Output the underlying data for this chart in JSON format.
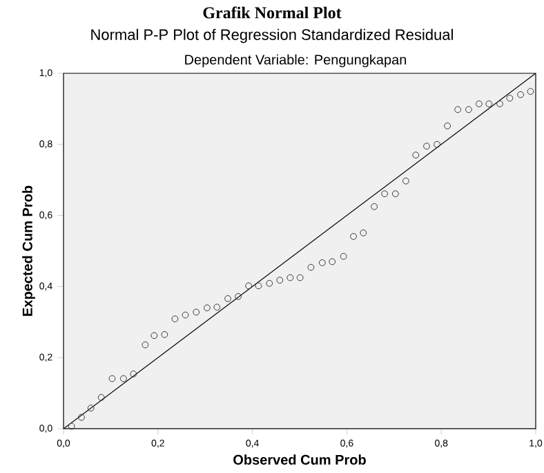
{
  "chart_data": {
    "type": "scatter",
    "title": "Grafik Normal Plot",
    "subtitle": "Normal P-P Plot of Regression Standardized Residual",
    "annotations": [
      "Dependent Variable: Pengungkapan"
    ],
    "xlabel": "Observed Cum Prob",
    "ylabel": "Expected Cum Prob",
    "xlim": [
      0,
      1
    ],
    "ylim": [
      0,
      1
    ],
    "xticks": [
      {
        "value": 0,
        "label": "0,0"
      },
      {
        "value": 0.2,
        "label": "0,2"
      },
      {
        "value": 0.4,
        "label": "0,4"
      },
      {
        "value": 0.6,
        "label": "0,6"
      },
      {
        "value": 0.8,
        "label": "0,8"
      },
      {
        "value": 1,
        "label": "1,0"
      }
    ],
    "yticks": [
      {
        "value": 0,
        "label": "0,0"
      },
      {
        "value": 0.2,
        "label": "0,2"
      },
      {
        "value": 0.4,
        "label": "0,4"
      },
      {
        "value": 0.6,
        "label": "0,6"
      },
      {
        "value": 0.8,
        "label": "0,8"
      },
      {
        "value": 1,
        "label": "1,0"
      }
    ],
    "grid": false,
    "series": [
      {
        "marker": "circle",
        "color": "#3a3a3a",
        "x": [
          0.017,
          0.038,
          0.058,
          0.08,
          0.103,
          0.127,
          0.148,
          0.173,
          0.192,
          0.214,
          0.236,
          0.258,
          0.281,
          0.304,
          0.325,
          0.348,
          0.37,
          0.392,
          0.413,
          0.436,
          0.458,
          0.48,
          0.501,
          0.524,
          0.548,
          0.569,
          0.593,
          0.614,
          0.635,
          0.658,
          0.68,
          0.703,
          0.725,
          0.746,
          0.769,
          0.791,
          0.813,
          0.835,
          0.858,
          0.88,
          0.901,
          0.924,
          0.945,
          0.968,
          0.989
        ],
        "values": [
          0.007,
          0.032,
          0.058,
          0.088,
          0.141,
          0.141,
          0.154,
          0.236,
          0.262,
          0.265,
          0.309,
          0.32,
          0.328,
          0.34,
          0.342,
          0.366,
          0.372,
          0.402,
          0.402,
          0.409,
          0.418,
          0.425,
          0.425,
          0.454,
          0.467,
          0.47,
          0.485,
          0.541,
          0.551,
          0.625,
          0.661,
          0.661,
          0.697,
          0.77,
          0.795,
          0.8,
          0.852,
          0.898,
          0.898,
          0.914,
          0.914,
          0.914,
          0.93,
          0.94,
          0.949
        ]
      },
      {
        "type": "line",
        "marker": "none",
        "line_style": "solid",
        "color": "#000000",
        "x": [
          0,
          1
        ],
        "values": [
          0,
          1
        ]
      }
    ]
  }
}
